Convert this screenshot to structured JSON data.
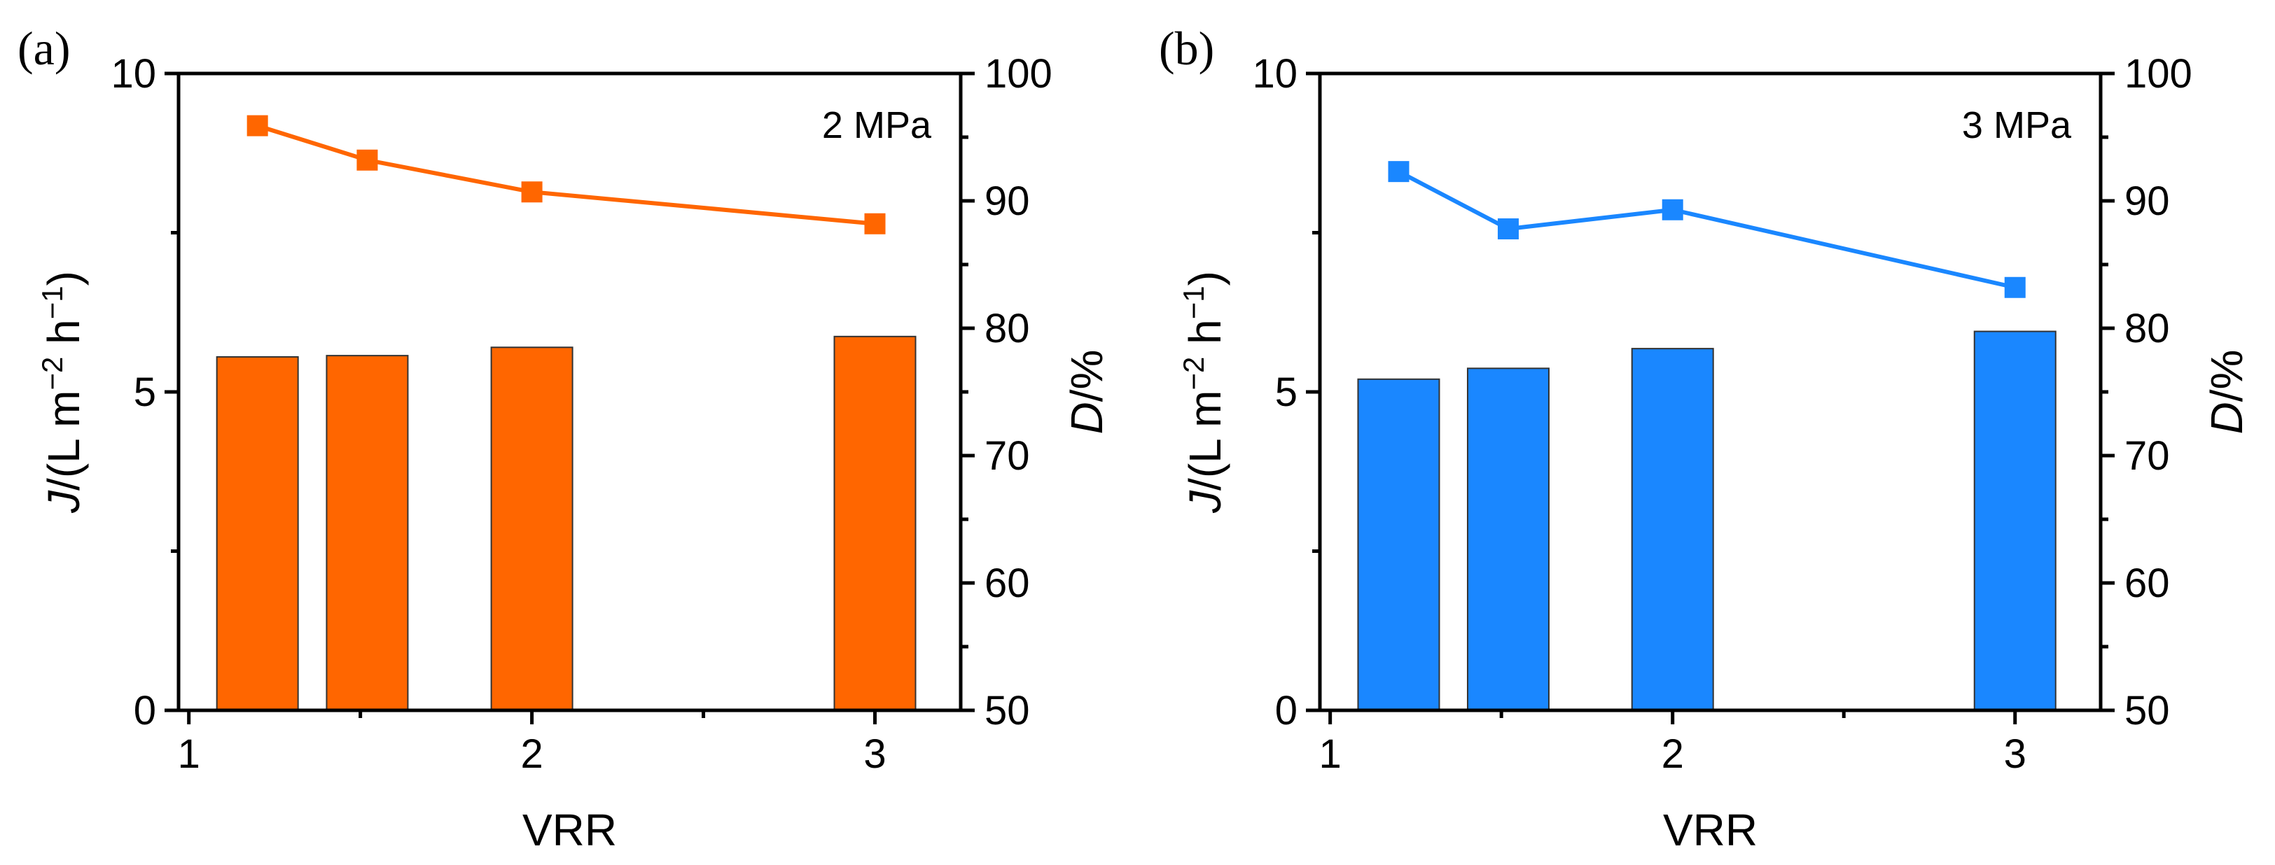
{
  "chart_data": [
    {
      "type": "bar",
      "panel_label": "(a)",
      "annotation": "2 MPa",
      "xlabel": "VRR",
      "x_ticks": [
        "1",
        "2",
        "3"
      ],
      "xlim": [
        0.97,
        3.25
      ],
      "ylabel_left": "J/(L m−2 h−1)",
      "ylabel_left_parts": {
        "sym": "J",
        "pre": "/(L m",
        "sup1": "−2",
        "mid": " h",
        "sup2": "−1",
        "post": ")"
      },
      "ylim_left": [
        0,
        10
      ],
      "y_ticks_left": [
        "0",
        "5",
        "10"
      ],
      "ylabel_right": "D/%",
      "ylabel_right_parts": {
        "sym": "D",
        "rest": "/%"
      },
      "ylim_right": [
        50,
        100
      ],
      "y_ticks_right": [
        "50",
        "60",
        "70",
        "80",
        "90",
        "100"
      ],
      "color": "#ff6600",
      "bars": {
        "name": "J",
        "x": [
          1.2,
          1.52,
          2.0,
          3.0
        ],
        "values": [
          5.55,
          5.57,
          5.7,
          5.87
        ]
      },
      "line": {
        "name": "D",
        "x": [
          1.2,
          1.52,
          2.0,
          3.0
        ],
        "values": [
          95.9,
          93.2,
          90.7,
          88.2
        ]
      }
    },
    {
      "type": "bar",
      "panel_label": "(b)",
      "annotation": "3 MPa",
      "xlabel": "VRR",
      "x_ticks": [
        "1",
        "2",
        "3"
      ],
      "xlim": [
        0.97,
        3.25
      ],
      "ylabel_left": "J/(L m−2 h−1)",
      "ylabel_left_parts": {
        "sym": "J",
        "pre": "/(L m",
        "sup1": "−2",
        "mid": " h",
        "sup2": "−1",
        "post": ")"
      },
      "ylim_left": [
        0,
        10
      ],
      "y_ticks_left": [
        "0",
        "5",
        "10"
      ],
      "ylabel_right": "D/%",
      "ylabel_right_parts": {
        "sym": "D",
        "rest": "/%"
      },
      "ylim_right": [
        50,
        100
      ],
      "y_ticks_right": [
        "50",
        "60",
        "70",
        "80",
        "90",
        "100"
      ],
      "color": "#1a87ff",
      "bars": {
        "name": "J",
        "x": [
          1.2,
          1.52,
          2.0,
          3.0
        ],
        "values": [
          5.2,
          5.37,
          5.68,
          5.95
        ]
      },
      "line": {
        "name": "D",
        "x": [
          1.2,
          1.52,
          2.0,
          3.0
        ],
        "values": [
          92.3,
          87.8,
          89.3,
          83.2
        ]
      }
    }
  ]
}
